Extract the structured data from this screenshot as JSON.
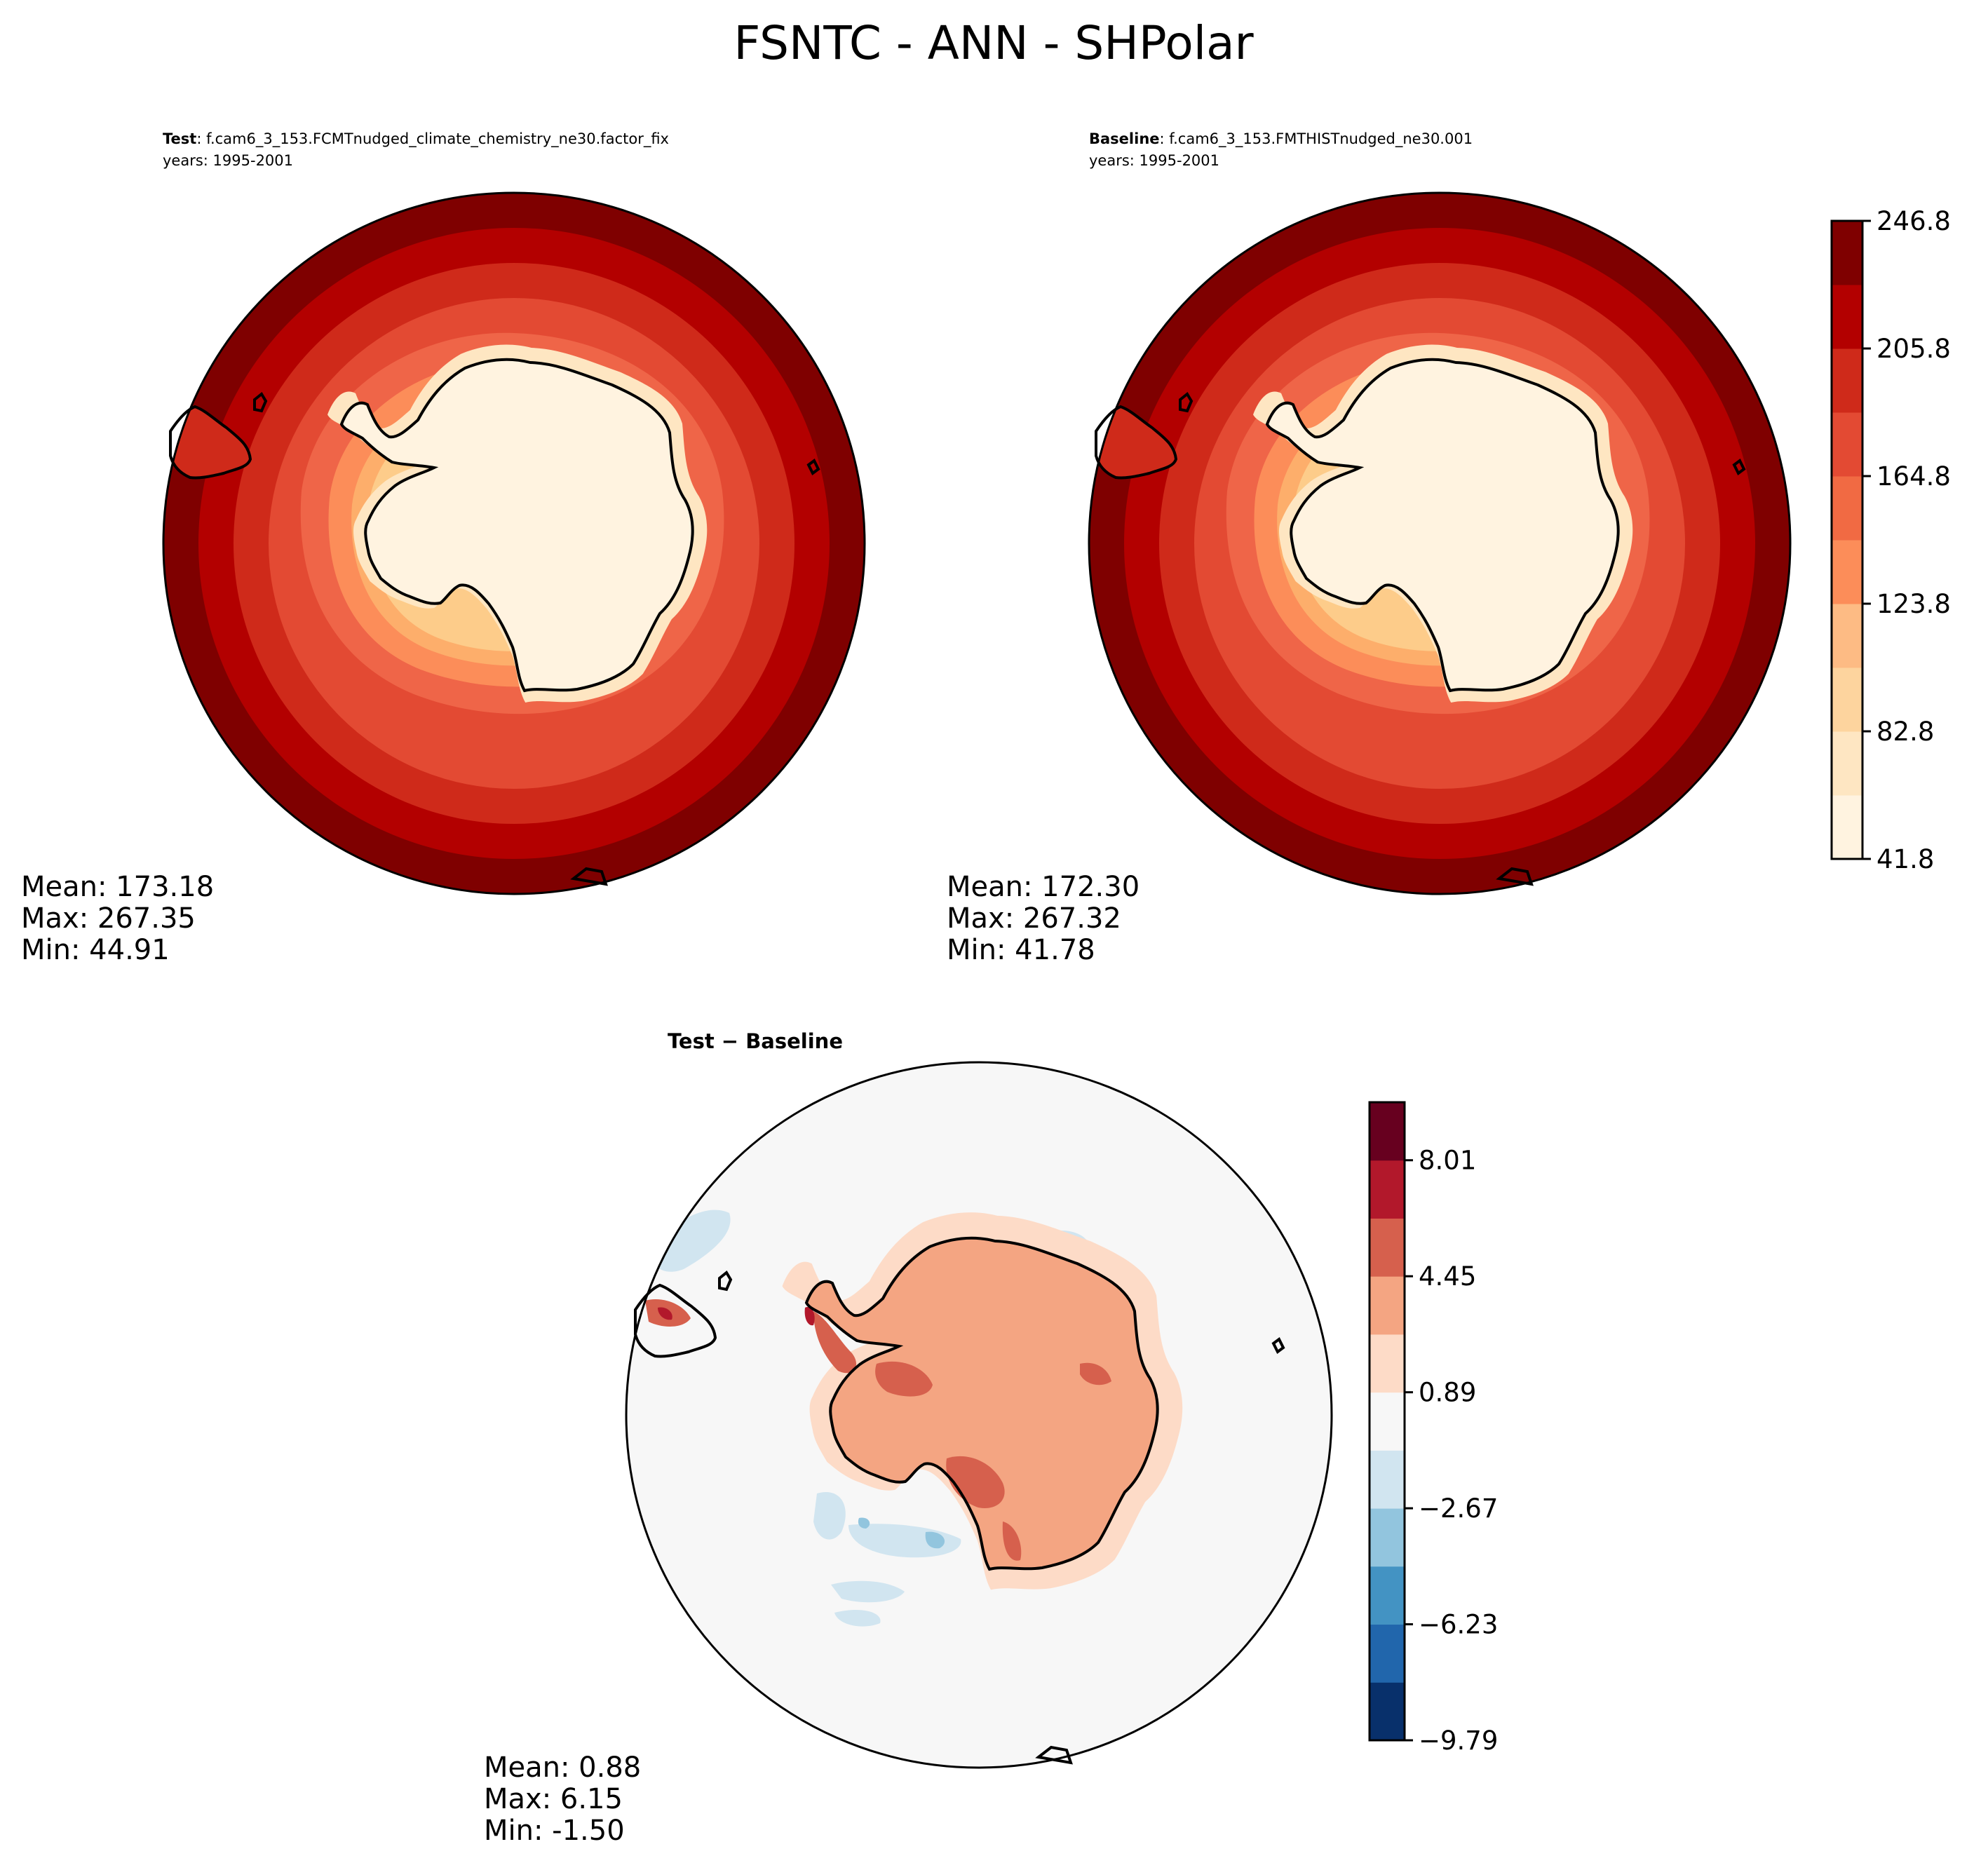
{
  "figure": {
    "title": "FSNTC - ANN - SHPolar"
  },
  "chart_data": [
    {
      "type": "heatmap",
      "panel": "test",
      "label_bold": "Test",
      "label_rest": ": f.cam6_3_153.FCMTnudged_climate_chemistry_ne30.factor_fix",
      "years": "years: 1995-2001",
      "stats": {
        "mean": "Mean: 173.18",
        "max": "Max: 267.35",
        "min": "Min: 44.91"
      },
      "colormap": "OrRd",
      "ring_colors": [
        "#7f0000",
        "#b30000",
        "#cf2a1a",
        "#e34a33",
        "#ef6548",
        "#fc8d59",
        "#fdae6b",
        "#fdcc8a",
        "#fee6c2",
        "#fff3e0"
      ]
    },
    {
      "type": "heatmap",
      "panel": "baseline",
      "label_bold": "Baseline",
      "label_rest": ": f.cam6_3_153.FMTHISTnudged_ne30.001",
      "years": "years: 1995-2001",
      "stats": {
        "mean": "Mean: 172.30",
        "max": "Max: 267.32",
        "min": "Min: 41.78"
      },
      "colormap": "OrRd",
      "colorbar": {
        "ticks": [
          "41.8",
          "82.8",
          "123.8",
          "164.8",
          "205.8",
          "246.8"
        ],
        "levels": 11,
        "colors": [
          "#fff3e0",
          "#fee6c2",
          "#fdd49e",
          "#fdbb84",
          "#fc8d59",
          "#f16a43",
          "#e34a33",
          "#cf2a1a",
          "#b30000",
          "#7f0000"
        ]
      }
    },
    {
      "type": "heatmap",
      "panel": "difference",
      "title": "Test − Baseline",
      "stats": {
        "mean": "Mean:  0.88",
        "max": "Max:  6.15",
        "min": "Min: -1.50"
      },
      "colormap": "RdBu_r",
      "colorbar": {
        "ticks": [
          "−9.79",
          "−6.23",
          "−2.67",
          "0.89",
          "4.45",
          "8.01"
        ],
        "levels": 12,
        "colors": [
          "#08306b",
          "#2166ac",
          "#4393c3",
          "#92c5de",
          "#d1e5f0",
          "#f7f7f7",
          "#fddbc7",
          "#f4a582",
          "#d6604d",
          "#b2182b",
          "#67001f"
        ]
      }
    }
  ]
}
